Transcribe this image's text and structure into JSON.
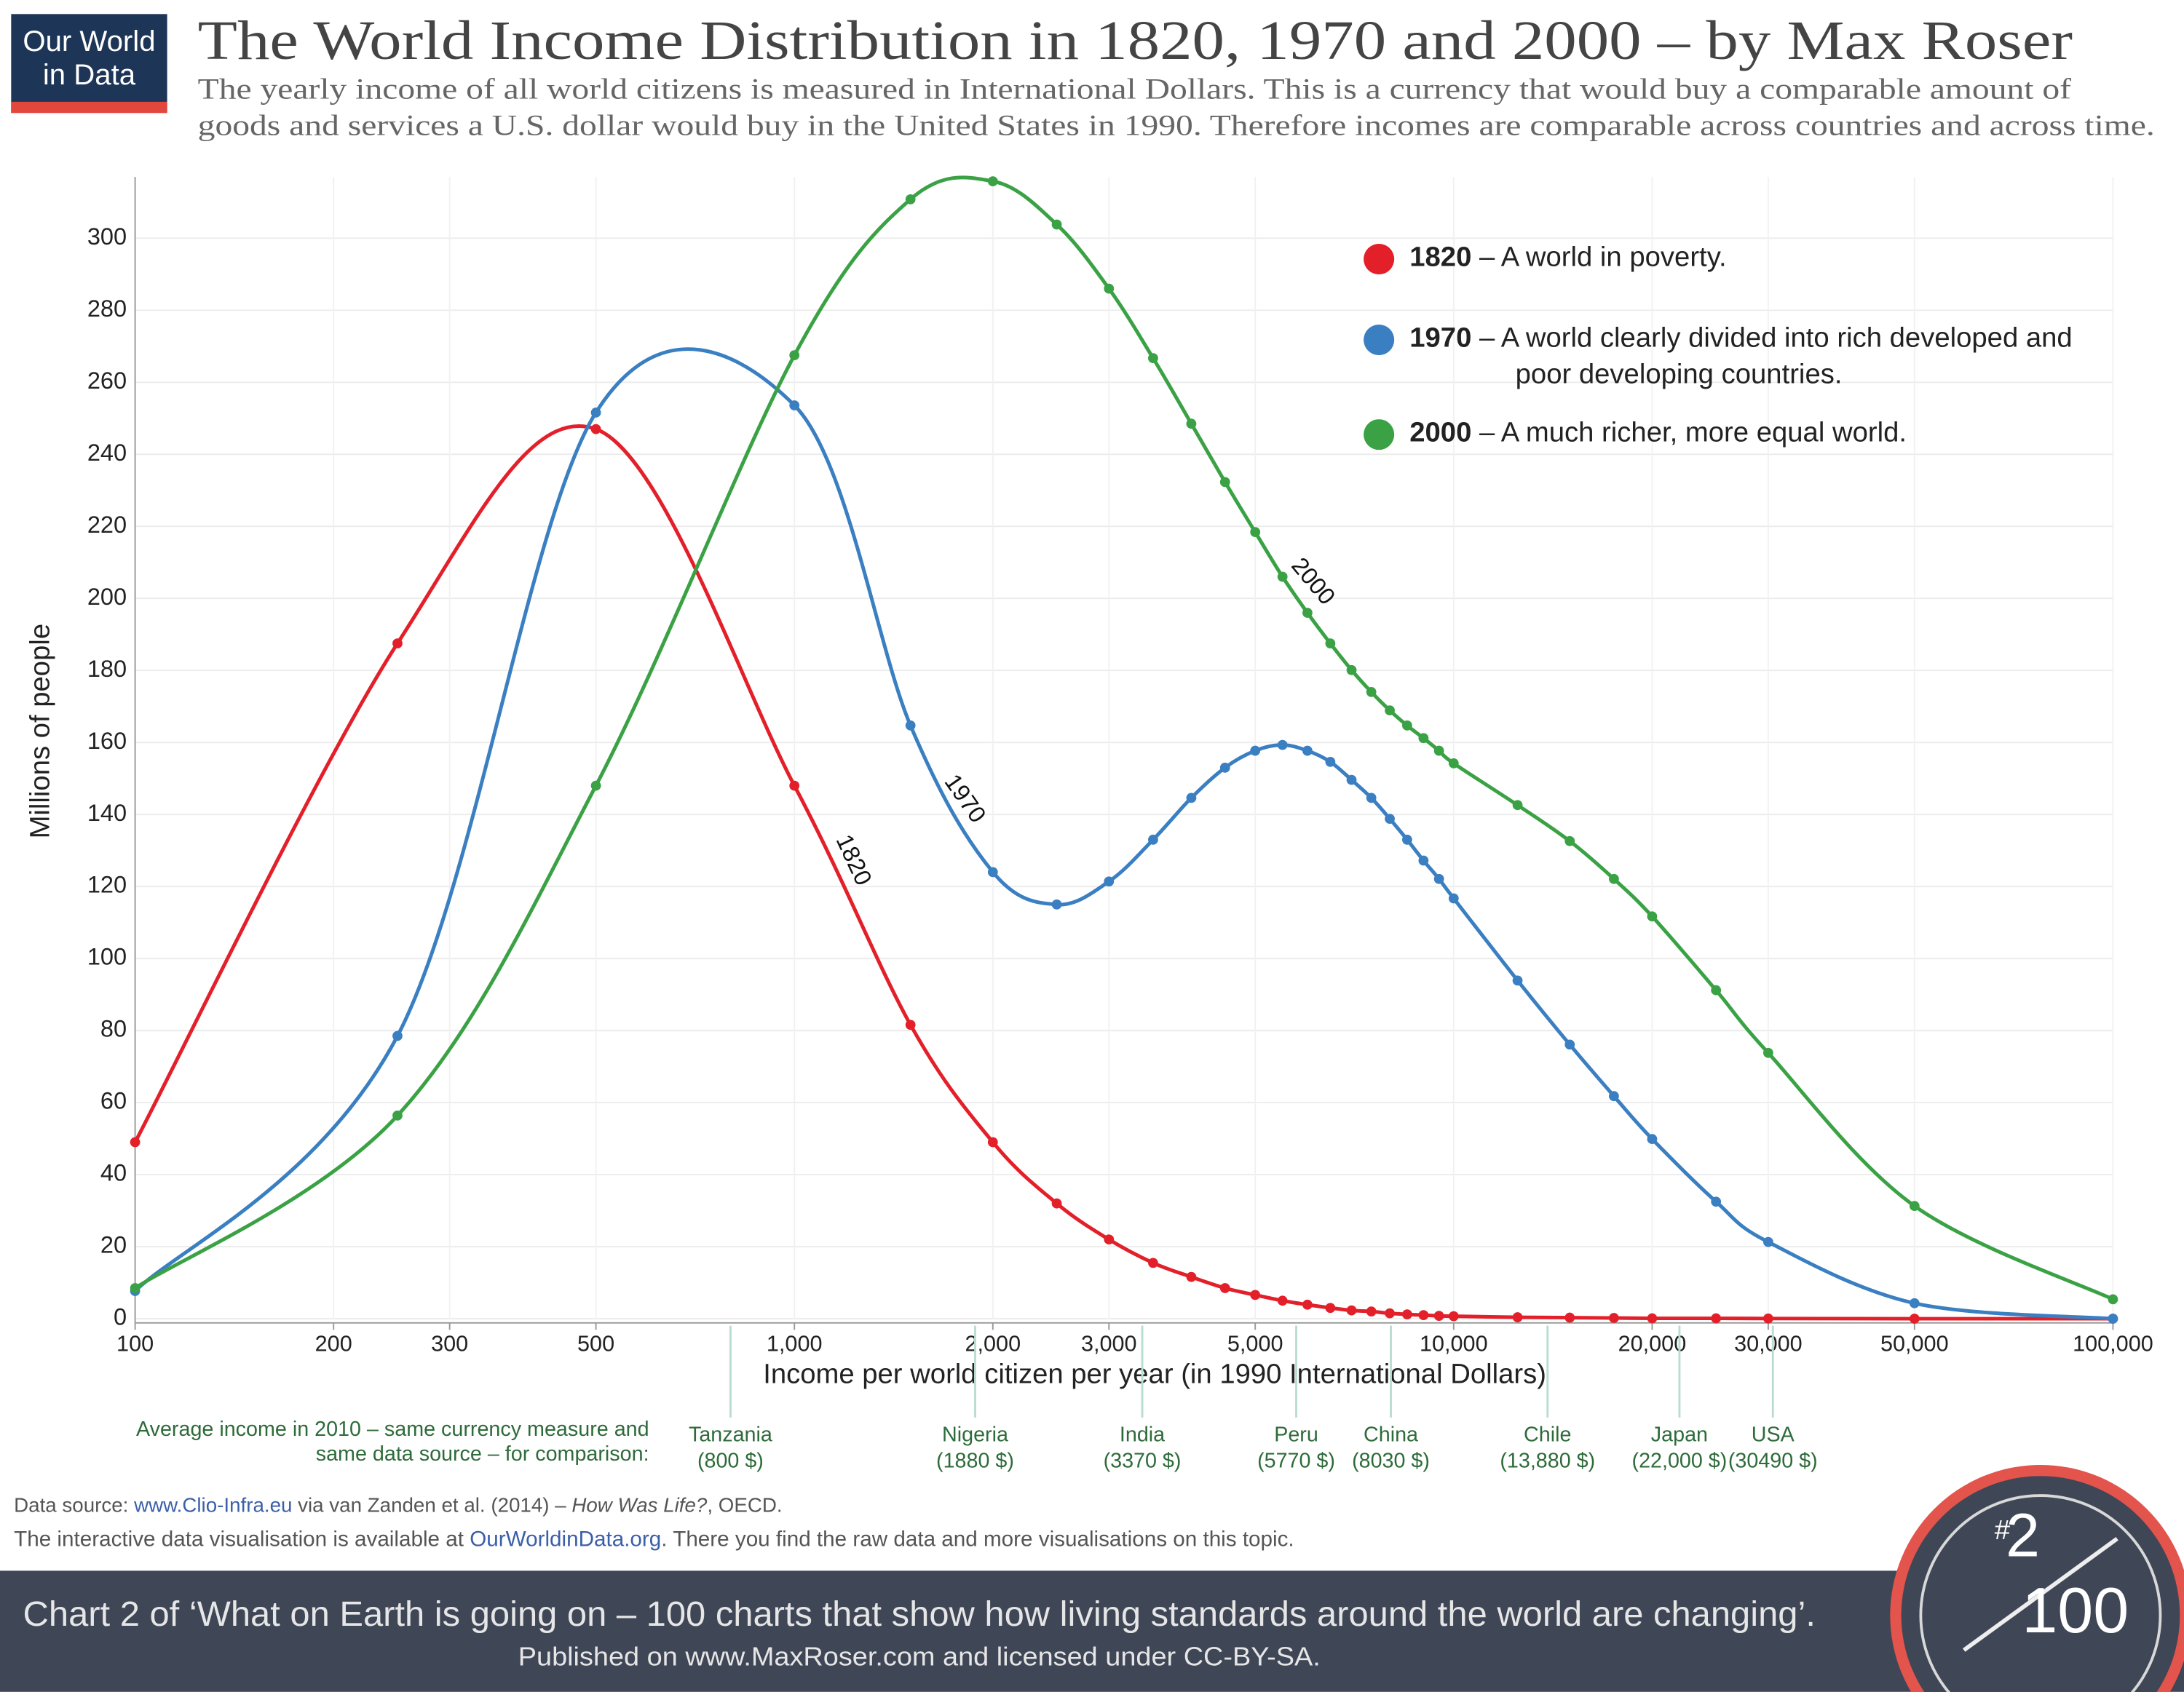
{
  "logo": {
    "line1": "Our World",
    "line2": "in Data"
  },
  "header": {
    "title": "The World Income Distribution in 1820, 1970 and 2000 – by Max Roser",
    "subtitle": [
      "The yearly income of all world citizens is measured in International Dollars. This is a currency that would buy a comparable amount of",
      "goods and services a U.S. dollar would buy in the United States in 1990. Therefore incomes are comparable across countries and across time."
    ]
  },
  "chart_data": {
    "type": "line",
    "x_label": "Income per world citizen per year (in 1990 International Dollars)",
    "y_label": "Millions of people",
    "x": [
      100,
      250,
      500,
      1000,
      1500,
      2000,
      2500,
      3000,
      3500,
      4000,
      4500,
      5000,
      5500,
      6000,
      6500,
      7000,
      7500,
      8000,
      8500,
      9000,
      9500,
      10000,
      12500,
      15000,
      17500,
      20000,
      25000,
      30000,
      50000,
      100000
    ],
    "series": [
      {
        "name": "1820",
        "description": "– A world in poverty.",
        "color": "#e3202a",
        "values": [
          49,
          187.5,
          247,
          148,
          81.6,
          49,
          32,
          22,
          15.5,
          11.6,
          8.5,
          6.6,
          5,
          3.9,
          3,
          2.3,
          2,
          1.5,
          1.2,
          1,
          0.8,
          0.7,
          0.4,
          0.3,
          0.2,
          0.1,
          0.1,
          0.05,
          0,
          0
        ]
      },
      {
        "name": "1970",
        "description": "– A world clearly divided into rich developed and poor developing countries.",
        "color": "#3a7fc1",
        "values": [
          7.7,
          78.5,
          251.6,
          253.6,
          164.7,
          124,
          115,
          121.4,
          133,
          144.6,
          153,
          157.7,
          159.3,
          157.7,
          154.6,
          149.6,
          144.6,
          138.8,
          133,
          127.2,
          122.1,
          116.7,
          93.9,
          76.1,
          61.8,
          49.9,
          32.5,
          21.3,
          4.3,
          0
        ]
      },
      {
        "name": "2000",
        "description": "– A much richer, more equal world.",
        "color": "#3aa244",
        "values": [
          8.5,
          56.4,
          148,
          267.5,
          310.8,
          315.8,
          303.8,
          286,
          266.7,
          248.5,
          232.3,
          218.4,
          206,
          196,
          187.5,
          180.1,
          174,
          168.9,
          164.7,
          161.2,
          157.7,
          154.2,
          142.6,
          132.6,
          122.1,
          111.7,
          91.2,
          73.8,
          31.3,
          5.4
        ]
      }
    ],
    "xlim": [
      100,
      100000
    ],
    "ylim": [
      0,
      317
    ],
    "log_x": true,
    "grid": true,
    "legend": "top-right",
    "xticks": [
      100,
      200,
      300,
      500,
      {
        "value": 1000,
        "label": "1,000"
      },
      {
        "value": 2000,
        "label": "2,000"
      },
      {
        "value": 3000,
        "label": "3,000"
      },
      {
        "value": 5000,
        "label": "5,000"
      },
      {
        "value": 10000,
        "label": "10,000"
      },
      {
        "value": 20000,
        "label": "20,000"
      },
      {
        "value": 30000,
        "label": "30,000"
      },
      {
        "value": 50000,
        "label": "50,000"
      },
      {
        "value": 100000,
        "label": "100,000"
      }
    ],
    "yticks": [
      0,
      20,
      40,
      60,
      80,
      100,
      120,
      140,
      160,
      180,
      200,
      220,
      240,
      260,
      280,
      300
    ],
    "comparison": {
      "heading": "Average income in 2010 – same currency measure and same data source – for comparison:",
      "countries": [
        {
          "name": "Tanzania",
          "value": 800,
          "label": "(800 $)"
        },
        {
          "name": "Nigeria",
          "value": 1880,
          "label": "(1880 $)"
        },
        {
          "name": "India",
          "value": 3370,
          "label": "(3370 $)"
        },
        {
          "name": "Peru",
          "value": 5770,
          "label": "(5770 $)"
        },
        {
          "name": "China",
          "value": 8030,
          "label": "(8030 $)"
        },
        {
          "name": "Chile",
          "value": 13880,
          "label": "(13,880 $)"
        },
        {
          "name": "Japan",
          "value": 22000,
          "label": "(22,000 $)"
        },
        {
          "name": "USA",
          "value": 30490,
          "label": "(30490 $)"
        }
      ]
    }
  },
  "source": {
    "line1": [
      "Data source:",
      "www.Clio-Infra.eu",
      "via van Zanden et al. (2014) –",
      "How Was Life?",
      ", OECD."
    ],
    "line2": [
      "The interactive data visualisation is available at",
      "OurWorldinData.org",
      ". There you find the raw data and more visualisations on this topic."
    ]
  },
  "footer": {
    "line1": "Chart 2 of ‘What on Earth is going on – 100 charts that show how living standards around the world are changing’.",
    "line2": "Published on www.MaxRoser.com and licensed under CC-BY-SA.",
    "badge": {
      "hash": "#",
      "number": "2",
      "total": "100"
    }
  }
}
